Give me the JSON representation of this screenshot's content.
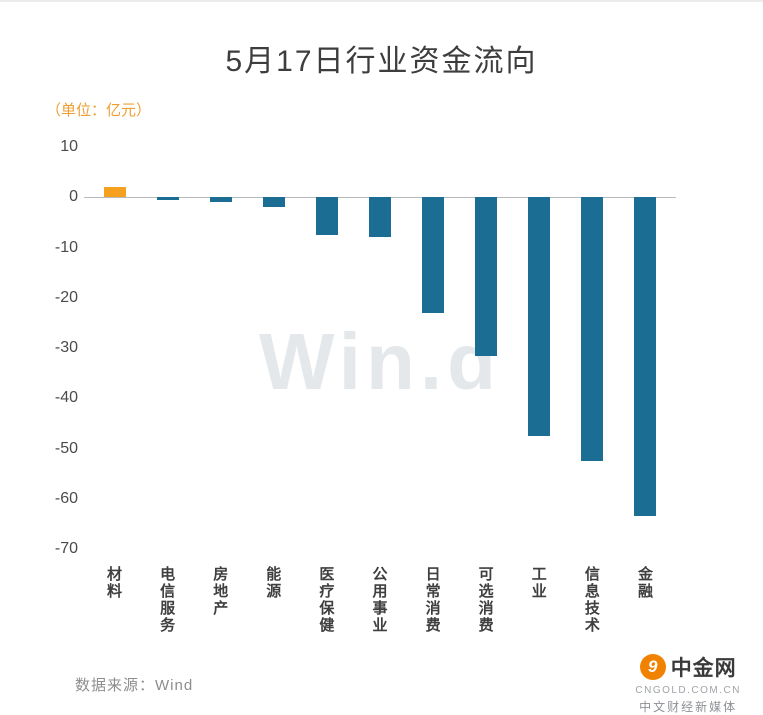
{
  "chart_data": {
    "type": "bar",
    "title": "5月17日行业资金流向",
    "unit_label": "（单位：亿元）",
    "watermark": "Win.d",
    "categories": [
      "材料",
      "电信服务",
      "房地产",
      "能源",
      "医疗保健",
      "公用事业",
      "日常消费",
      "可选消费",
      "工业",
      "信息技术",
      "金融"
    ],
    "values": [
      2,
      -0.5,
      -1,
      -2,
      -7.5,
      -8,
      -23,
      -31.5,
      -47.5,
      -52.5,
      -63.5
    ],
    "ylabel": "亿元",
    "ylim": [
      -70,
      10
    ],
    "yticks": [
      10,
      0,
      -10,
      -20,
      -30,
      -40,
      -50,
      -60,
      -70
    ],
    "grid": false,
    "legend": false,
    "colors": {
      "positive_bar": "#f6a01f",
      "negative_bar": "#1c6d94",
      "unit_text": "#ee9f32",
      "watermark_text": "#e4e8ea"
    }
  },
  "footer": {
    "source": "数据来源：Wind",
    "logo": {
      "name": "中金网",
      "icon_glyph": "9",
      "domain": "CNGOLD.COM.CN",
      "tagline": "中文财经新媒体",
      "color": "#f08200"
    }
  }
}
